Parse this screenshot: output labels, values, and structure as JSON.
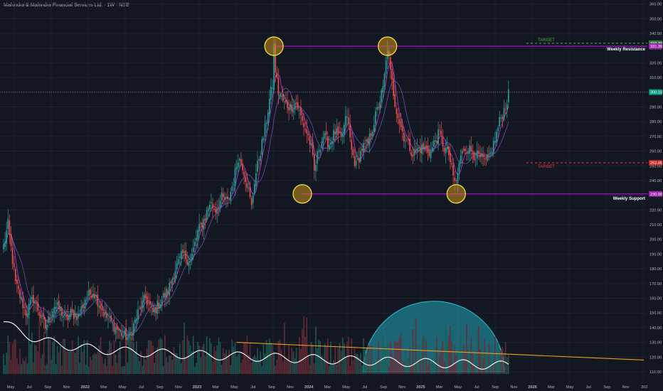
{
  "header": {
    "symbol_title": "Mahindra & Mahindra Financial Services Ltd. · 1W · NSE"
  },
  "colors": {
    "background": "#131722",
    "grid": "#1e222d",
    "candle_up": "#26a69a",
    "candle_down": "#ef5350",
    "vol_up": "#1f5e57",
    "vol_down": "#6b2c36",
    "ma_fast": "#e040fb",
    "ma_slow": "#7e57c2",
    "level_line": "#d500f9",
    "target_up": "#4caf50",
    "target_down": "#f23645",
    "circle_fill": "#c8921e",
    "circle_stroke": "#ffeb3b",
    "dome_fill": "#26c6da",
    "trend_line": "#f0a020",
    "vol_line": "#ffffff",
    "price_badge": "#089981"
  },
  "chart_data": {
    "type": "candlestick",
    "ylim": [
      105,
      365
    ],
    "y_ticks": [
      "360.00",
      "350.00",
      "340.00",
      "330.00",
      "320.00",
      "310.00",
      "300.00",
      "290.00",
      "280.00",
      "270.00",
      "260.00",
      "250.00",
      "240.00",
      "230.00",
      "220.00",
      "210.00",
      "200.00",
      "190.00",
      "180.00",
      "170.00",
      "160.00",
      "150.00",
      "140.00",
      "130.00",
      "120.00",
      "110.00"
    ],
    "x_ticks": [
      "May",
      "Jul",
      "Sep",
      "Nov",
      "2022",
      "Mar",
      "May",
      "Jul",
      "Sep",
      "Nov",
      "2023",
      "Mar",
      "May",
      "Jul",
      "Sep",
      "Nov",
      "2024",
      "Mar",
      "May",
      "Jul",
      "Sep",
      "Nov",
      "2025",
      "Mar",
      "May",
      "Jul",
      "Sep",
      "Nov",
      "2026",
      "Mar",
      "May",
      "Jul",
      "Sep",
      "Nov",
      "202"
    ],
    "x_ticks_bold": [
      "2022",
      "2023",
      "2024",
      "2025",
      "2026"
    ],
    "anchors": [
      [
        0,
        195
      ],
      [
        3,
        210
      ],
      [
        8,
        170
      ],
      [
        15,
        150
      ],
      [
        20,
        160
      ],
      [
        28,
        140
      ],
      [
        34,
        155
      ],
      [
        38,
        152
      ],
      [
        42,
        145
      ],
      [
        45,
        150
      ],
      [
        50,
        148
      ],
      [
        55,
        160
      ],
      [
        60,
        165
      ],
      [
        68,
        148
      ],
      [
        75,
        140
      ],
      [
        80,
        135
      ],
      [
        84,
        133
      ],
      [
        90,
        150
      ],
      [
        95,
        160
      ],
      [
        100,
        150
      ],
      [
        105,
        158
      ],
      [
        110,
        165
      ],
      [
        115,
        180
      ],
      [
        120,
        190
      ],
      [
        125,
        185
      ],
      [
        130,
        205
      ],
      [
        135,
        215
      ],
      [
        138,
        225
      ],
      [
        142,
        220
      ],
      [
        146,
        228
      ],
      [
        150,
        225
      ],
      [
        154,
        240
      ],
      [
        157,
        256
      ],
      [
        160,
        250
      ],
      [
        163,
        238
      ],
      [
        166,
        222
      ],
      [
        168,
        240
      ],
      [
        172,
        260
      ],
      [
        175,
        275
      ],
      [
        178,
        295
      ],
      [
        180,
        305
      ],
      [
        181,
        331
      ],
      [
        182,
        315
      ],
      [
        184,
        300
      ],
      [
        188,
        292
      ],
      [
        192,
        290
      ],
      [
        196,
        293
      ],
      [
        200,
        280
      ],
      [
        204,
        270
      ],
      [
        206,
        262
      ],
      [
        208,
        246
      ],
      [
        211,
        262
      ],
      [
        214,
        270
      ],
      [
        218,
        265
      ],
      [
        222,
        273
      ],
      [
        226,
        268
      ],
      [
        230,
        285
      ],
      [
        233,
        260
      ],
      [
        236,
        250
      ],
      [
        240,
        262
      ],
      [
        244,
        265
      ],
      [
        248,
        280
      ],
      [
        252,
        295
      ],
      [
        254,
        302
      ],
      [
        256,
        320
      ],
      [
        257,
        331
      ],
      [
        259,
        313
      ],
      [
        262,
        293
      ],
      [
        265,
        280
      ],
      [
        268,
        270
      ],
      [
        271,
        265
      ],
      [
        274,
        258
      ],
      [
        278,
        262
      ],
      [
        282,
        262
      ],
      [
        286,
        259
      ],
      [
        289,
        268
      ],
      [
        292,
        272
      ],
      [
        295,
        262
      ],
      [
        298,
        258
      ],
      [
        301,
        242
      ],
      [
        303,
        238
      ],
      [
        305,
        252
      ],
      [
        308,
        262
      ],
      [
        311,
        262
      ],
      [
        315,
        258
      ],
      [
        319,
        255
      ],
      [
        323,
        252
      ],
      [
        326,
        258
      ],
      [
        329,
        268
      ],
      [
        332,
        280
      ],
      [
        335,
        288
      ],
      [
        338,
        298
      ]
    ],
    "support_level": 230.9,
    "resistance_level": 331.3,
    "current_price": 300.1,
    "price_labels": {
      "resistance_top": "333.30",
      "resistance": "331.30",
      "current": "300.10",
      "target_down": "252.05",
      "support": "230.90"
    },
    "targets": [
      {
        "label": "TARGET",
        "value": 333.3,
        "direction": "up"
      },
      {
        "label": "TARGET",
        "value": 252.05,
        "direction": "down"
      }
    ],
    "annotations": {
      "resistance": "Weekly Resistance",
      "support": "Weekly Support"
    },
    "volume_trend": [
      [
        "Apr 2023",
        130
      ],
      [
        "Oct 2025",
        118
      ]
    ],
    "volume_dome": {
      "x_center": "Mar 2025",
      "base": 110,
      "top": 158
    }
  }
}
